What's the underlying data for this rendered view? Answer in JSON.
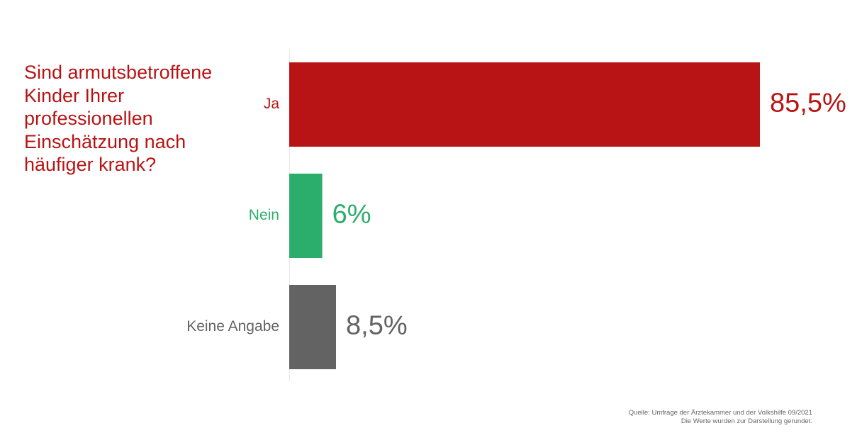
{
  "question": "Sind armutsbetroffene\nKinder Ihrer\nprofessionellen\nEinschätzung nach\nhäufiger krank?",
  "colors": {
    "question": "#b81415",
    "axis": "#e6e6e6"
  },
  "chart_data": {
    "type": "bar",
    "orientation": "horizontal",
    "categories": [
      "Ja",
      "Nein",
      "Keine Angabe"
    ],
    "values": [
      85.5,
      6,
      8.5
    ],
    "value_labels": [
      "85,5%",
      "6%",
      "8,5%"
    ],
    "colors": [
      "#b81415",
      "#2bae6c",
      "#636363"
    ],
    "unit": "%",
    "xlim": [
      0,
      85.5
    ],
    "grid": false,
    "legend": "none"
  },
  "source": {
    "line1": "Quelle: Umfrage der Ärztekammer und der Volkshilfe 09/2021",
    "line2": "Die Werte wurden zur Darstellung gerundet."
  }
}
